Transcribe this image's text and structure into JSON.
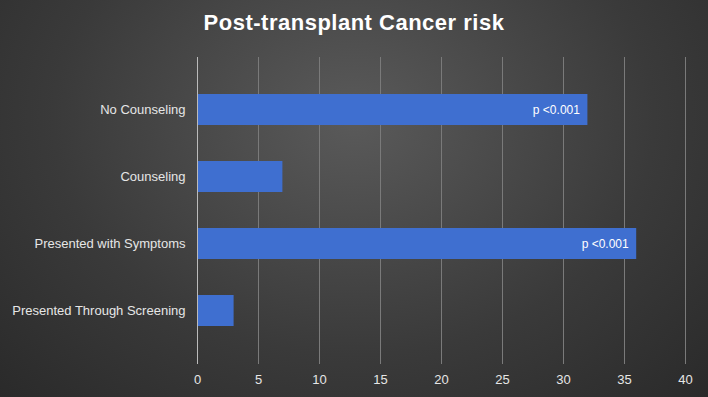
{
  "chart_data": {
    "type": "bar",
    "title": "Post-transplant Cancer risk",
    "orientation": "horizontal",
    "categories": [
      "No Counseling",
      "Counseling",
      "Presented with Symptoms",
      "Presented Through Screening"
    ],
    "values": [
      32,
      7,
      36,
      3
    ],
    "color": "#3f6fd0",
    "xlim": [
      0,
      40
    ],
    "xticks": [
      0,
      5,
      10,
      15,
      20,
      25,
      30,
      35,
      40
    ],
    "grid": true,
    "annotations": [
      {
        "category": "No Counseling",
        "text": "p <0.001"
      },
      {
        "category": "Presented with Symptoms",
        "text": "p <0.001"
      }
    ]
  }
}
